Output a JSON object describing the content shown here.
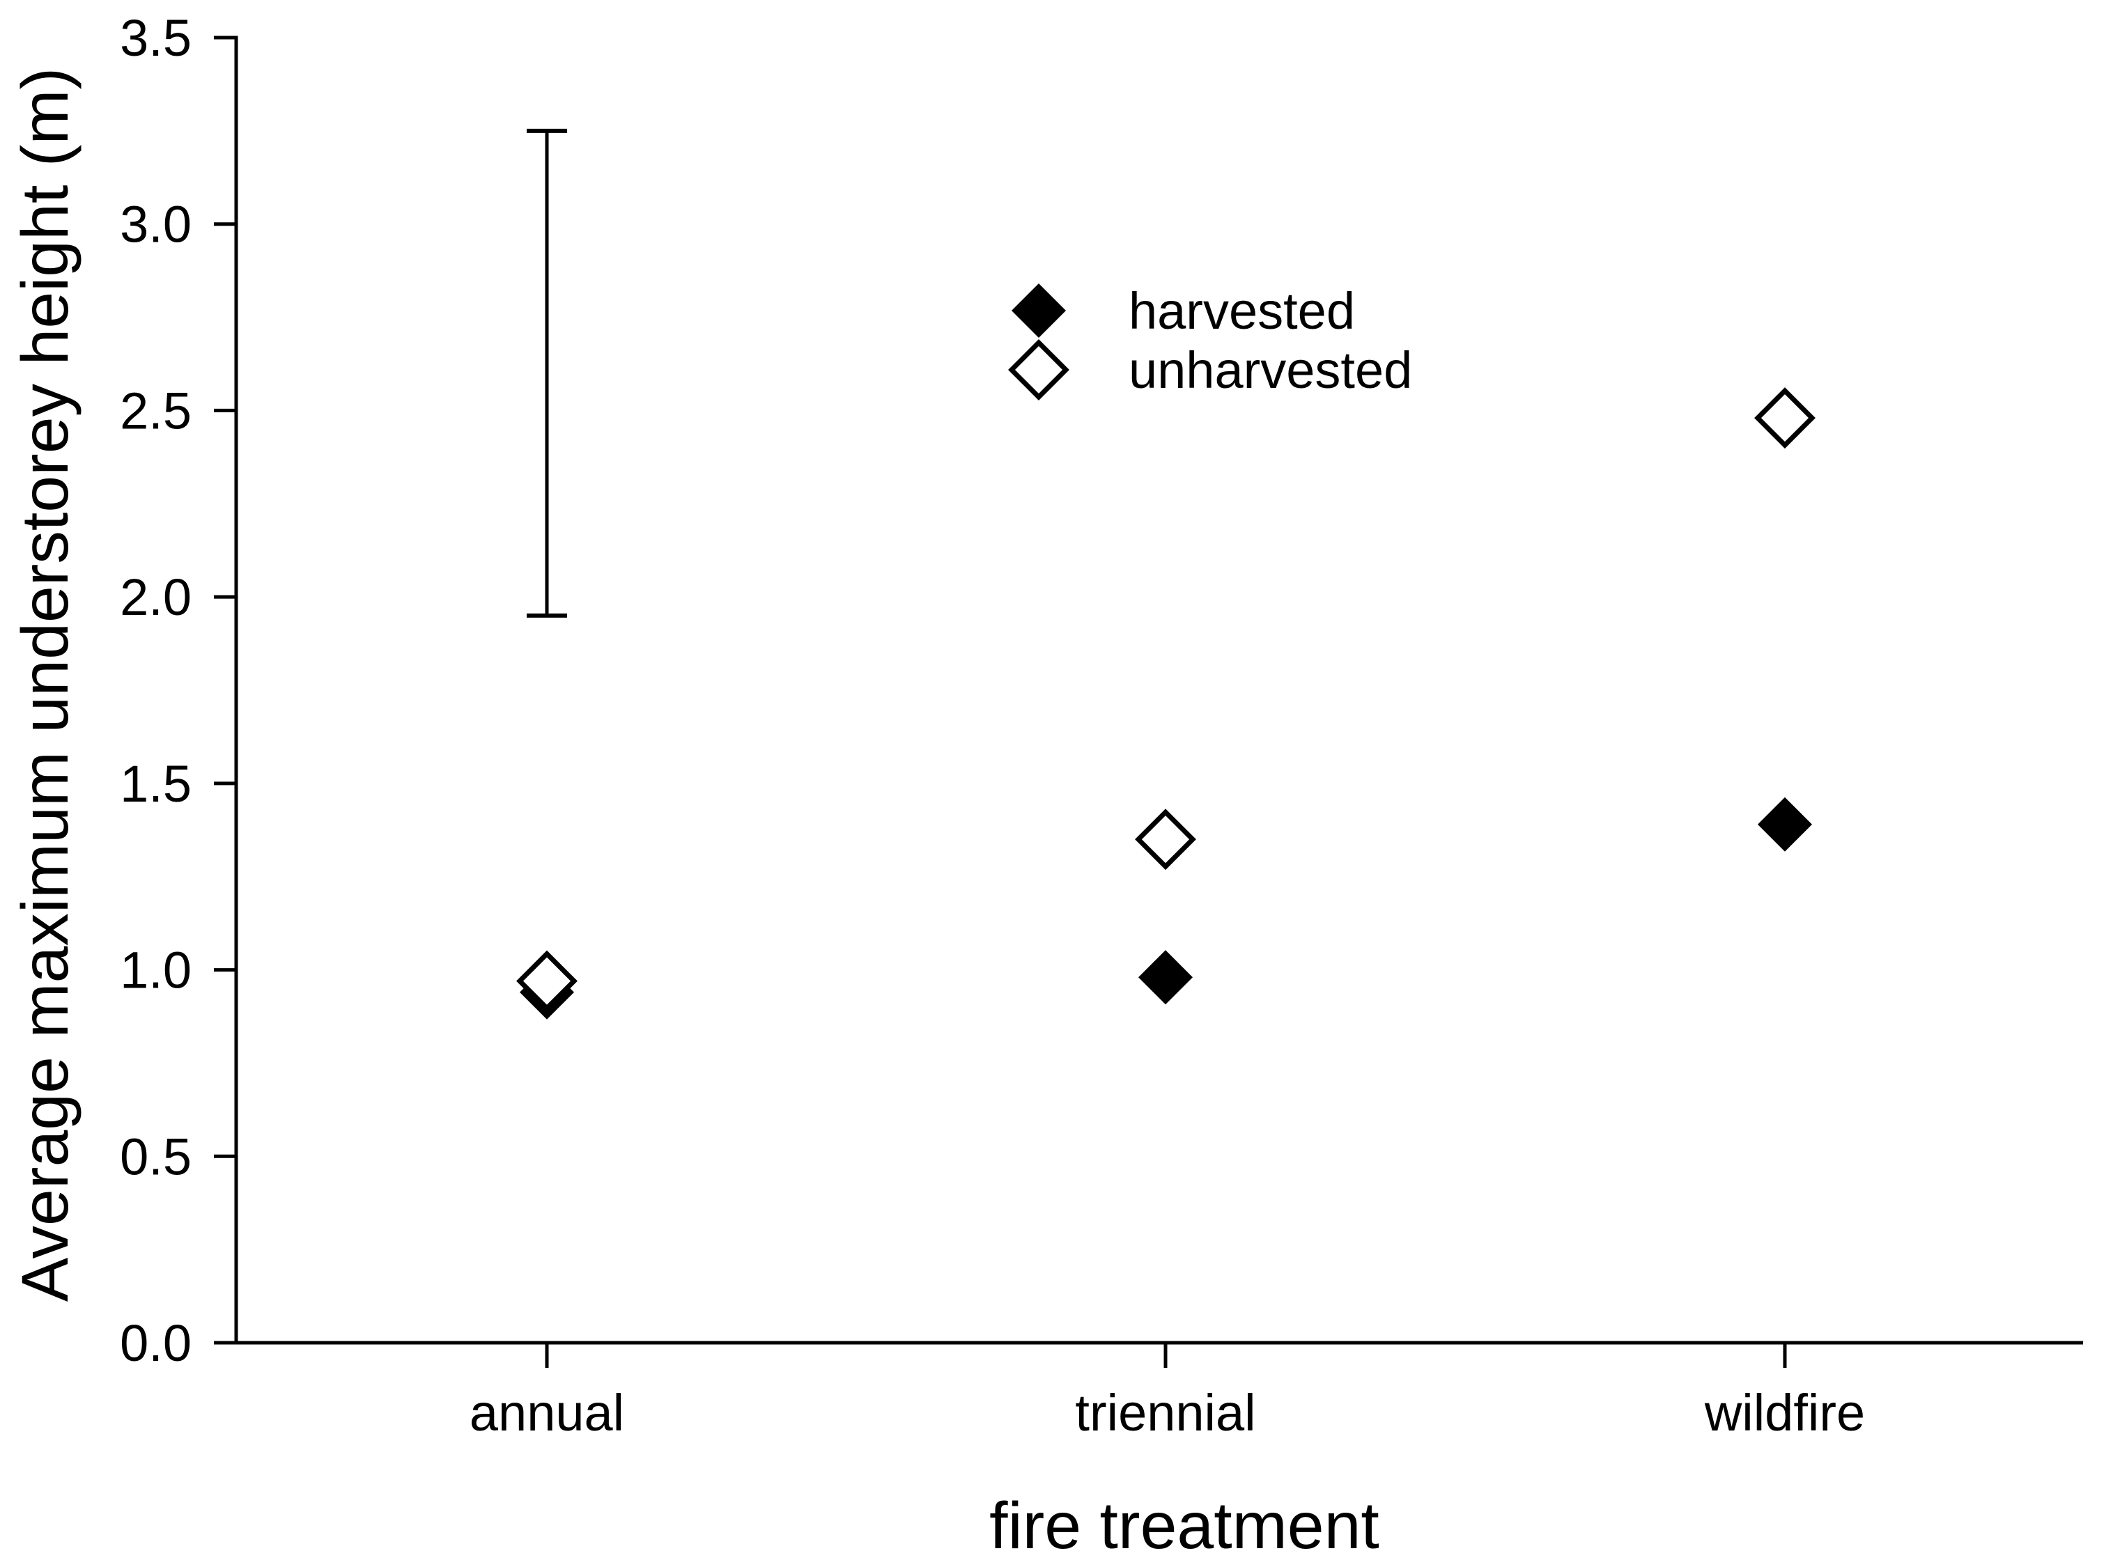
{
  "figure": {
    "background": "#ffffff",
    "ink_color": "#000000"
  },
  "chart_data": {
    "type": "scatter",
    "title": "",
    "xlabel": "fire treatment",
    "ylabel": "Average maximum understorey height (m)",
    "categories": [
      "annual",
      "triennial",
      "wildfire"
    ],
    "series": [
      {
        "name": "harvested",
        "marker": "filled-diamond",
        "values": [
          0.94,
          0.98,
          1.39
        ]
      },
      {
        "name": "unharvested",
        "marker": "open-diamond",
        "values": [
          0.97,
          1.35,
          2.48
        ]
      }
    ],
    "error_bar": {
      "category": "annual",
      "low": 1.95,
      "high": 3.25
    },
    "y_axis": {
      "min": 0.0,
      "max": 3.5,
      "ticks": [
        "0.0",
        "0.5",
        "1.0",
        "1.5",
        "2.0",
        "2.5",
        "3.0",
        "3.5"
      ]
    },
    "x_axis": {
      "tick_labels": [
        "annual",
        "triennial",
        "wildfire"
      ]
    },
    "legend": {
      "position": "upper-middle",
      "items": [
        "harvested",
        "unharvested"
      ]
    },
    "grid": false
  }
}
